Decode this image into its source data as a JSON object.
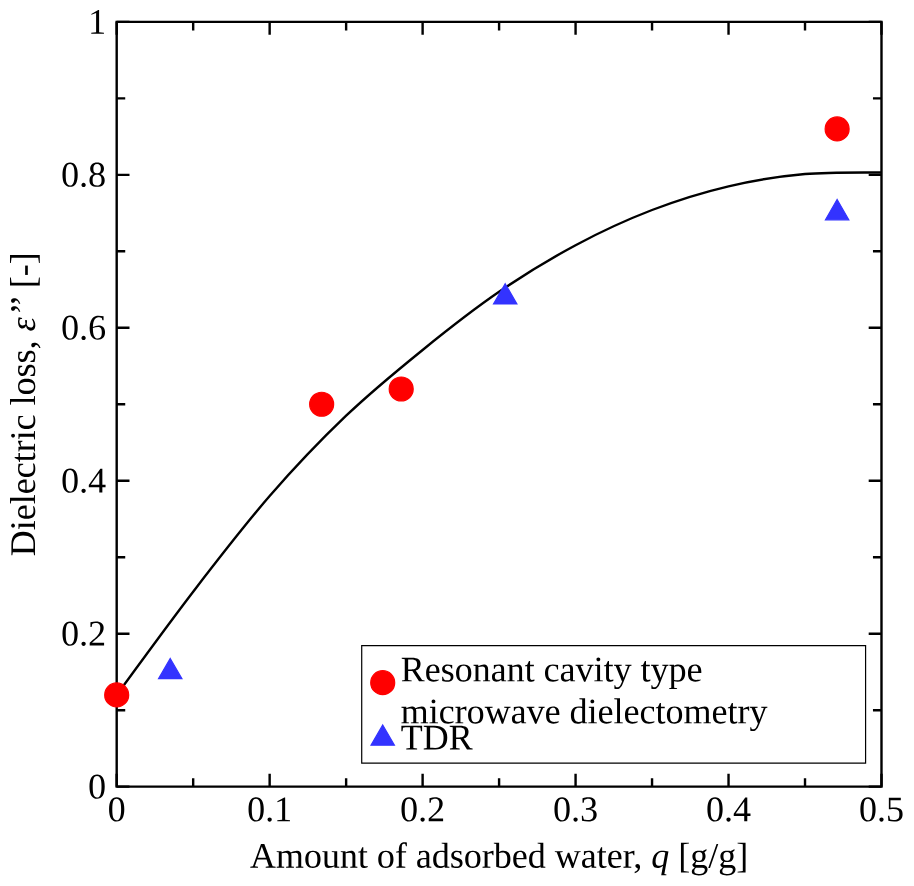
{
  "chart_data": {
    "type": "scatter",
    "xlabel": "Amount of adsorbed water, *q* [g/g]",
    "ylabel": "Dielectric loss, *ε’’*  [-]",
    "xlim": [
      0,
      0.5
    ],
    "ylim": [
      0,
      1
    ],
    "xticks": [
      0,
      0.1,
      0.2,
      0.3,
      0.4,
      0.5
    ],
    "yticks": [
      0,
      0.2,
      0.4,
      0.6,
      0.8,
      1
    ],
    "legend": "bottom right",
    "grid": false,
    "series": [
      {
        "name": "Resonant cavity type microwave dielectometry",
        "marker": "circle",
        "color": "#ff0000",
        "x": [
          0,
          0.134,
          0.186,
          0.471
        ],
        "values": [
          0.12,
          0.5,
          0.52,
          0.86
        ]
      },
      {
        "name": "TDR",
        "marker": "triangle",
        "color": "#3333ff",
        "x": [
          0.035,
          0.254,
          0.471
        ],
        "values": [
          0.15,
          0.64,
          0.75
        ]
      },
      {
        "type": "line",
        "marker": "none",
        "color": "#000000",
        "x": [
          0,
          0.05,
          0.1,
          0.15,
          0.2,
          0.25,
          0.3,
          0.35,
          0.4,
          0.45,
          0.5
        ],
        "values": [
          0.12,
          0.255,
          0.38,
          0.485,
          0.571,
          0.647,
          0.708,
          0.754,
          0.785,
          0.801,
          0.803
        ]
      }
    ]
  }
}
